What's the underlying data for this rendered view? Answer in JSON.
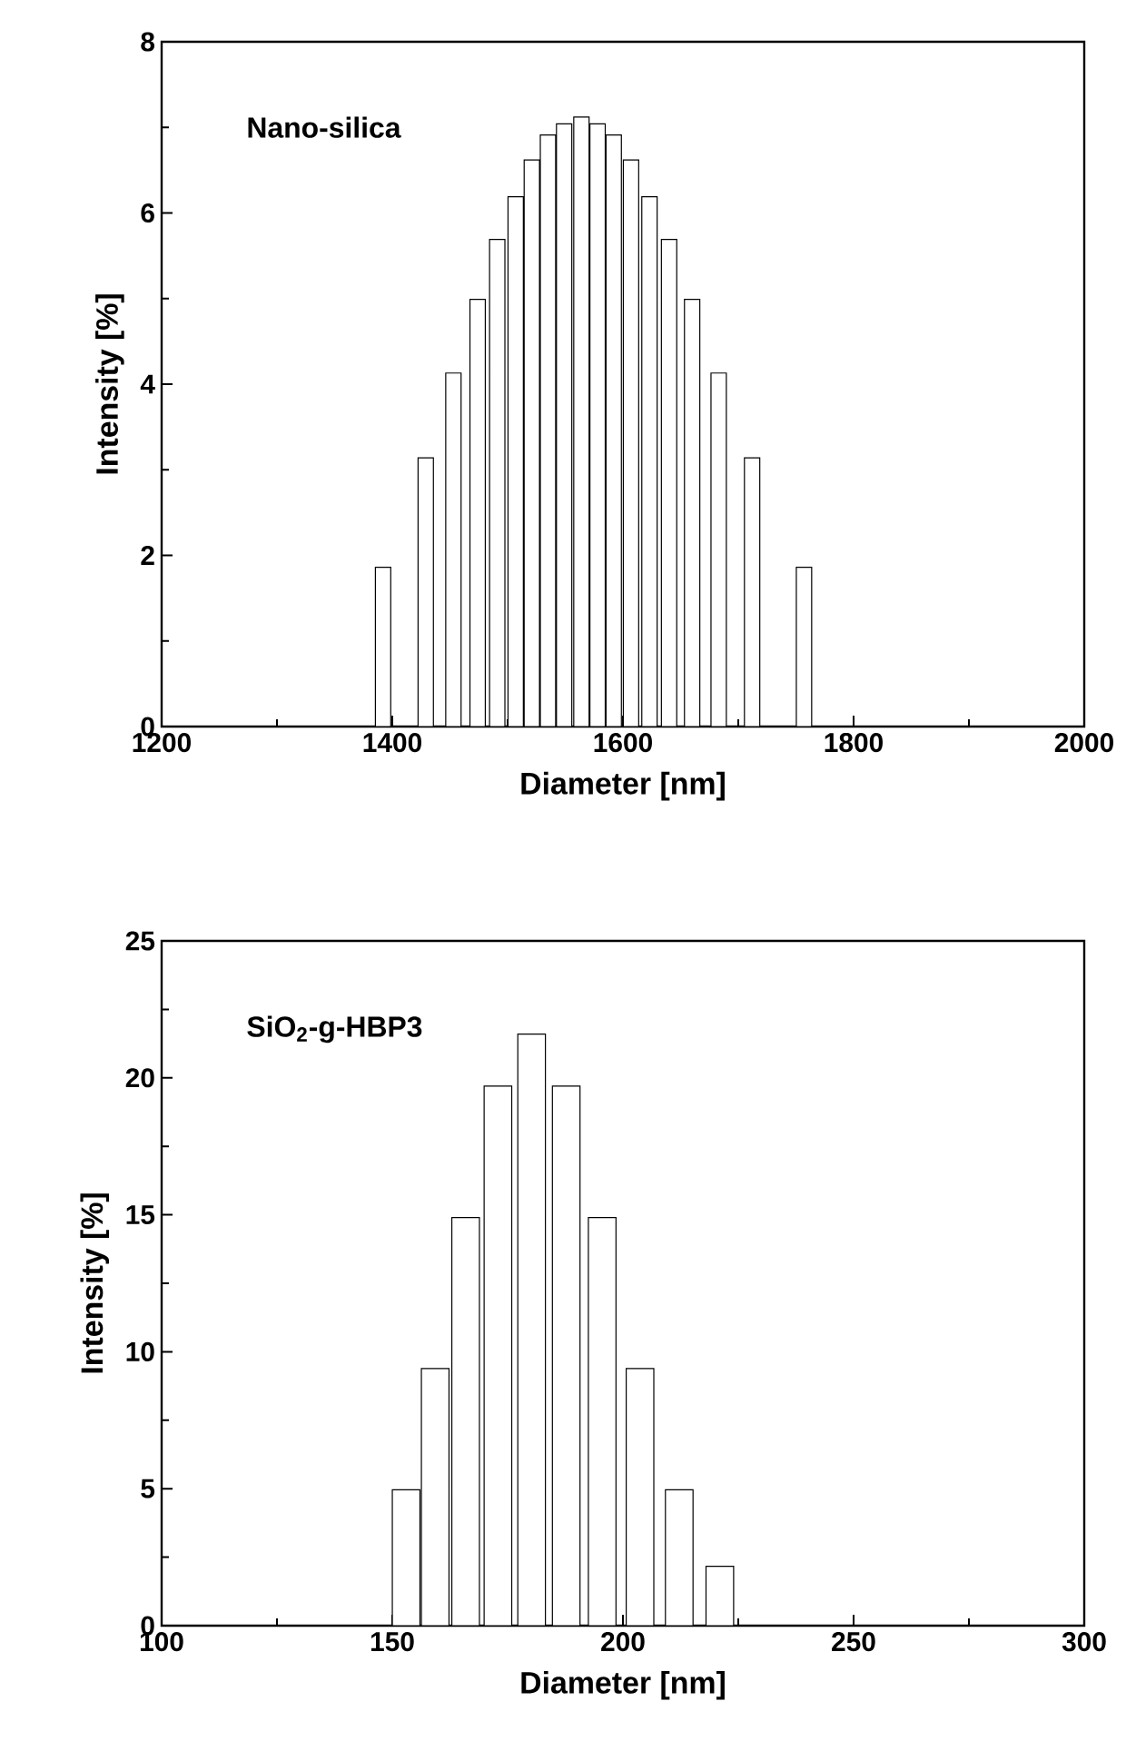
{
  "chart_data": [
    {
      "type": "bar",
      "xlabel": "Diameter [nm]",
      "ylabel": "Intensity [%]",
      "annotations": [
        "Nano-silica"
      ],
      "color": "#ffffff",
      "x": [
        1392,
        1429,
        1453,
        1474,
        1491,
        1507,
        1521,
        1535,
        1549,
        1564,
        1578,
        1592,
        1607,
        1623,
        1640,
        1660,
        1683,
        1712,
        1757
      ],
      "values": [
        1.86,
        3.14,
        4.13,
        4.99,
        5.69,
        6.19,
        6.62,
        6.91,
        7.04,
        7.12,
        7.04,
        6.91,
        6.62,
        6.19,
        5.69,
        4.99,
        4.13,
        3.14,
        1.86
      ],
      "xlim": [
        1200,
        2000
      ],
      "xticks": [
        1200,
        1400,
        1600,
        1800,
        2000
      ],
      "ylim": [
        0,
        8
      ],
      "yticks": [
        0,
        2,
        4,
        6,
        8
      ]
    },
    {
      "type": "bar",
      "xlabel": "Diameter [nm]",
      "ylabel": "Intensity [%]",
      "annotations": [
        "SiO$_{2}$-g-HBP3"
      ],
      "color": "#ffffff",
      "x": [
        153.0,
        159.3,
        165.9,
        172.9,
        180.2,
        187.7,
        195.5,
        203.7,
        212.2,
        221.0
      ],
      "values": [
        4.96,
        9.39,
        14.9,
        19.7,
        21.6,
        19.7,
        14.9,
        9.39,
        4.96,
        2.17
      ],
      "xlim": [
        100,
        300
      ],
      "xticks": [
        100,
        150,
        200,
        250,
        300
      ],
      "ylim": [
        0,
        25
      ],
      "yticks": [
        0,
        5,
        10,
        15,
        20,
        25
      ]
    }
  ]
}
